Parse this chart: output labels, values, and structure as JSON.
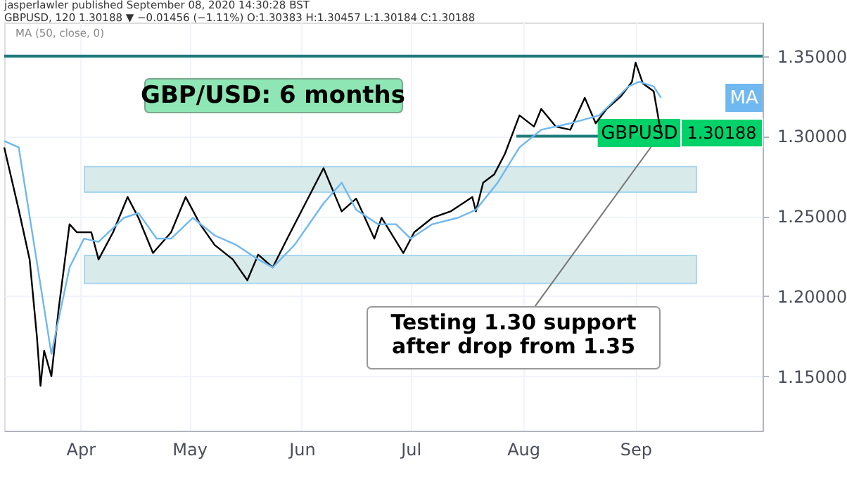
{
  "chart_data": {
    "type": "line",
    "title": "GBP/USD: 6 months",
    "annotations": [
      "jasperlawler published September 08, 2020 14:30:28 BST",
      "GBPUSD, 120 1.30188 ▼ −0.01456 (−1.11%) O:1.30383 H:1.30457 L:1.30184 C:1.30188",
      "MA (50, close, 0)",
      "Testing 1.30 support\nafter drop from 1.35",
      "1.30188"
    ],
    "xlim": [
      "2020-03-11",
      "2020-10-06"
    ],
    "xticks": [
      {
        "value": "2020-04-01",
        "label": "Apr"
      },
      {
        "value": "2020-05-01",
        "label": "May"
      },
      {
        "value": "2020-06-01",
        "label": "Jun"
      },
      {
        "value": "2020-07-01",
        "label": "Jul"
      },
      {
        "value": "2020-08-01",
        "label": "Aug"
      },
      {
        "value": "2020-09-01",
        "label": "Sep"
      }
    ],
    "ylim": [
      1.116,
      1.371
    ],
    "yticks": [
      {
        "value": 1.15,
        "label": "1.15000"
      },
      {
        "value": 1.2,
        "label": "1.20000"
      },
      {
        "value": 1.25,
        "label": "1.25000"
      },
      {
        "value": 1.3,
        "label": "1.30000"
      },
      {
        "value": 1.35,
        "label": "1.35000"
      }
    ],
    "grid": true,
    "bands": [
      {
        "axis": "y",
        "from": 1.265,
        "to": 1.281,
        "color": "#d8eaea"
      },
      {
        "axis": "y",
        "from": 1.208,
        "to": 1.2255,
        "color": "#d8eaea"
      }
    ],
    "ref_lines": [
      {
        "axis": "y",
        "value": 1.35,
        "color": "#1e7b7b"
      },
      {
        "axis": "y",
        "value": 1.3,
        "color": "#1e7b7b"
      }
    ],
    "series": [
      {
        "name": "GBPUSD",
        "color": "#000000",
        "x": [
          "2020-03-11",
          "2020-03-15",
          "2020-03-18",
          "2020-03-20",
          "2020-03-21",
          "2020-03-22",
          "2020-03-24",
          "2020-03-26",
          "2020-03-29",
          "2020-03-31",
          "2020-04-04",
          "2020-04-06",
          "2020-04-10",
          "2020-04-14",
          "2020-04-17",
          "2020-04-21",
          "2020-04-26",
          "2020-04-30",
          "2020-05-04",
          "2020-05-08",
          "2020-05-13",
          "2020-05-17",
          "2020-05-20",
          "2020-05-24",
          "2020-05-28",
          "2020-06-02",
          "2020-06-07",
          "2020-06-12",
          "2020-06-16",
          "2020-06-21",
          "2020-06-23",
          "2020-06-29",
          "2020-07-02",
          "2020-07-07",
          "2020-07-12",
          "2020-07-18",
          "2020-07-19",
          "2020-07-21",
          "2020-07-24",
          "2020-07-27",
          "2020-07-31",
          "2020-08-04",
          "2020-08-06",
          "2020-08-10",
          "2020-08-14",
          "2020-08-18",
          "2020-08-21",
          "2020-08-24",
          "2020-08-28",
          "2020-08-31",
          "2020-09-01",
          "2020-09-03",
          "2020-09-06",
          "2020-09-07",
          "2020-09-08"
        ],
        "values": [
          1.293,
          1.254,
          1.223,
          1.175,
          1.144,
          1.166,
          1.15,
          1.192,
          1.245,
          1.24,
          1.24,
          1.223,
          1.24,
          1.262,
          1.249,
          1.227,
          1.24,
          1.262,
          1.245,
          1.232,
          1.223,
          1.21,
          1.226,
          1.218,
          1.236,
          1.258,
          1.28,
          1.253,
          1.261,
          1.236,
          1.249,
          1.227,
          1.24,
          1.249,
          1.253,
          1.262,
          1.253,
          1.271,
          1.276,
          1.289,
          1.313,
          1.306,
          1.317,
          1.306,
          1.304,
          1.324,
          1.308,
          1.317,
          1.325,
          1.334,
          1.346,
          1.333,
          1.328,
          1.315,
          1.302
        ]
      },
      {
        "name": "MA",
        "color": "#6fb8f0",
        "x": [
          "2020-03-11",
          "2020-03-15",
          "2020-03-24",
          "2020-03-29",
          "2020-04-02",
          "2020-04-06",
          "2020-04-13",
          "2020-04-17",
          "2020-04-22",
          "2020-04-26",
          "2020-05-02",
          "2020-05-08",
          "2020-05-14",
          "2020-05-20",
          "2020-05-24",
          "2020-05-30",
          "2020-06-07",
          "2020-06-12",
          "2020-06-16",
          "2020-06-22",
          "2020-06-27",
          "2020-07-01",
          "2020-07-07",
          "2020-07-14",
          "2020-07-19",
          "2020-07-25",
          "2020-07-31",
          "2020-08-06",
          "2020-08-14",
          "2020-08-22",
          "2020-08-30",
          "2020-09-02",
          "2020-09-06",
          "2020-09-08"
        ],
        "values": [
          1.297,
          1.293,
          1.164,
          1.218,
          1.236,
          1.234,
          1.249,
          1.252,
          1.236,
          1.236,
          1.249,
          1.238,
          1.232,
          1.223,
          1.218,
          1.232,
          1.258,
          1.271,
          1.254,
          1.245,
          1.245,
          1.236,
          1.245,
          1.249,
          1.254,
          1.271,
          1.293,
          1.304,
          1.308,
          1.313,
          1.331,
          1.334,
          1.331,
          1.324
        ]
      }
    ]
  }
}
